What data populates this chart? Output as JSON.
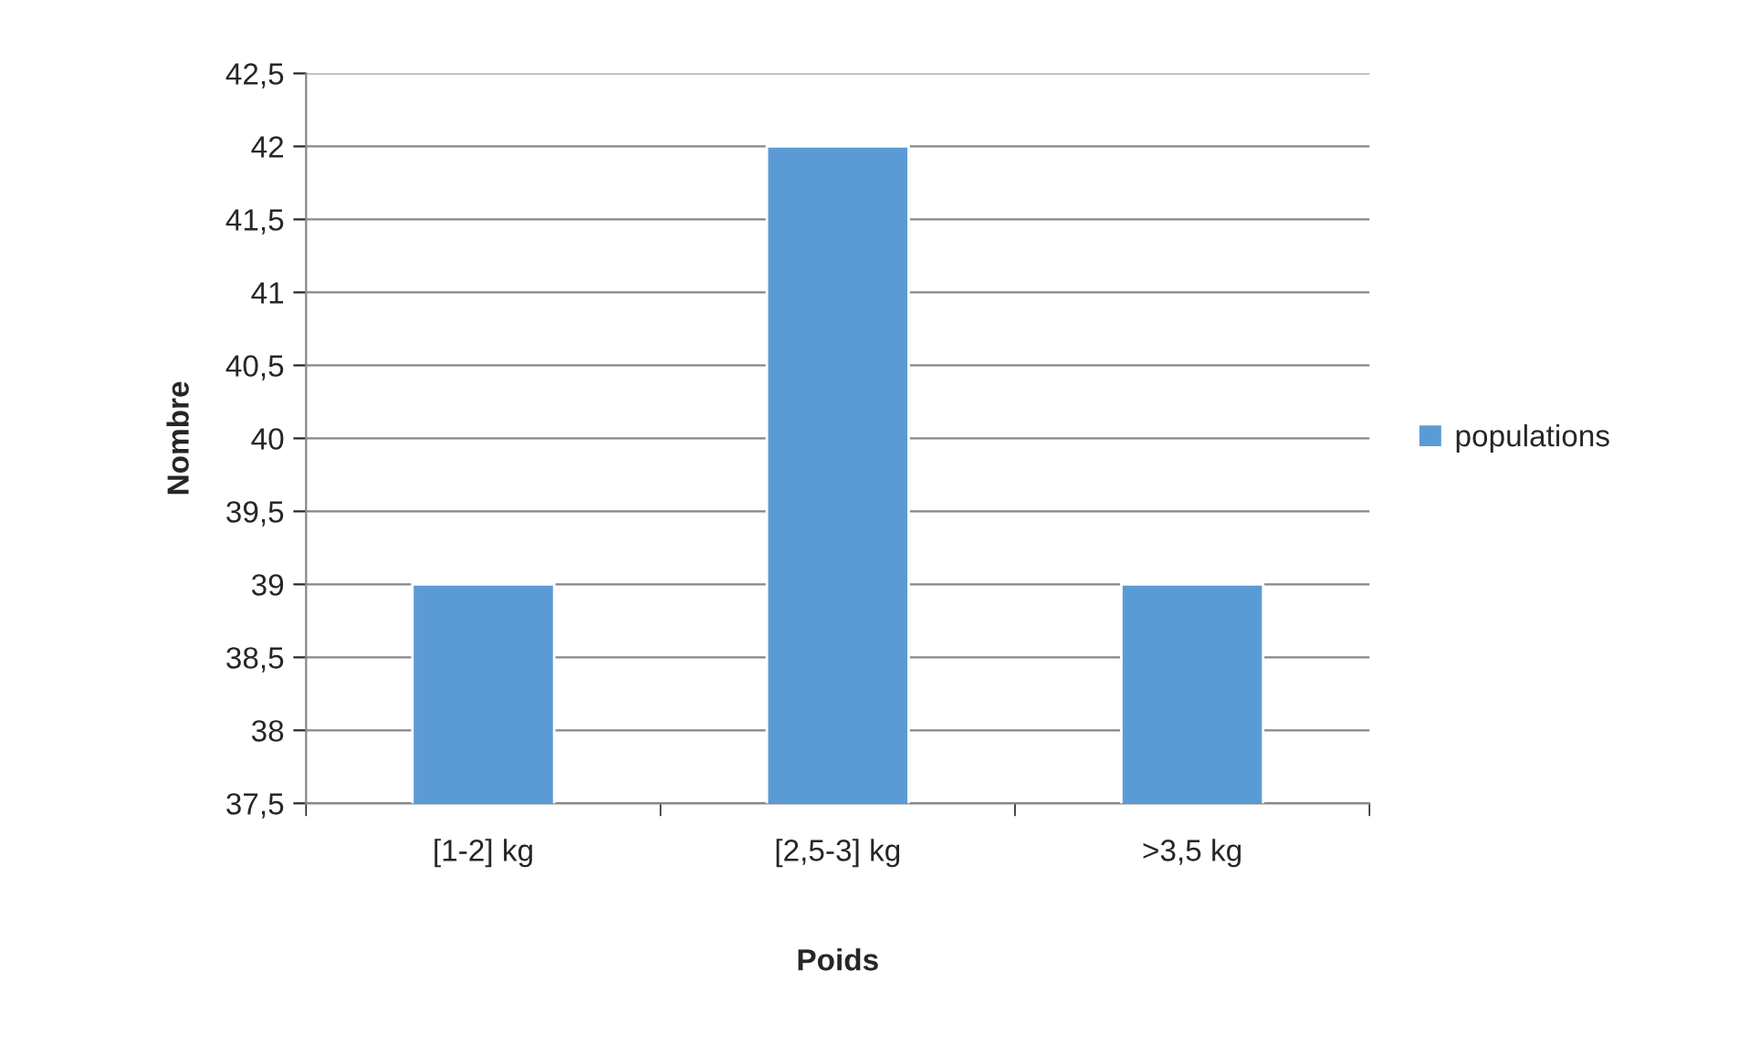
{
  "chart_data": {
    "type": "bar",
    "xlabel": "Poids",
    "ylabel": "Nombre",
    "categories": [
      "[1-2] kg",
      "[2,5-3] kg",
      ">3,5 kg"
    ],
    "series": [
      {
        "name": "populations",
        "color": "#5b9bd5",
        "values": [
          39,
          42,
          39
        ]
      }
    ],
    "ylim": [
      37.5,
      42.5
    ],
    "yticks": [
      {
        "value": 37.5,
        "label": "37,5"
      },
      38,
      {
        "value": 38.5,
        "label": "38,5"
      },
      39,
      {
        "value": 39.5,
        "label": "39,5"
      },
      40,
      {
        "value": 40.5,
        "label": "40,5"
      },
      41,
      {
        "value": 41.5,
        "label": "41,5"
      },
      42,
      {
        "value": 42.5,
        "label": "42,5"
      }
    ],
    "grid": "y",
    "legend": "right"
  }
}
